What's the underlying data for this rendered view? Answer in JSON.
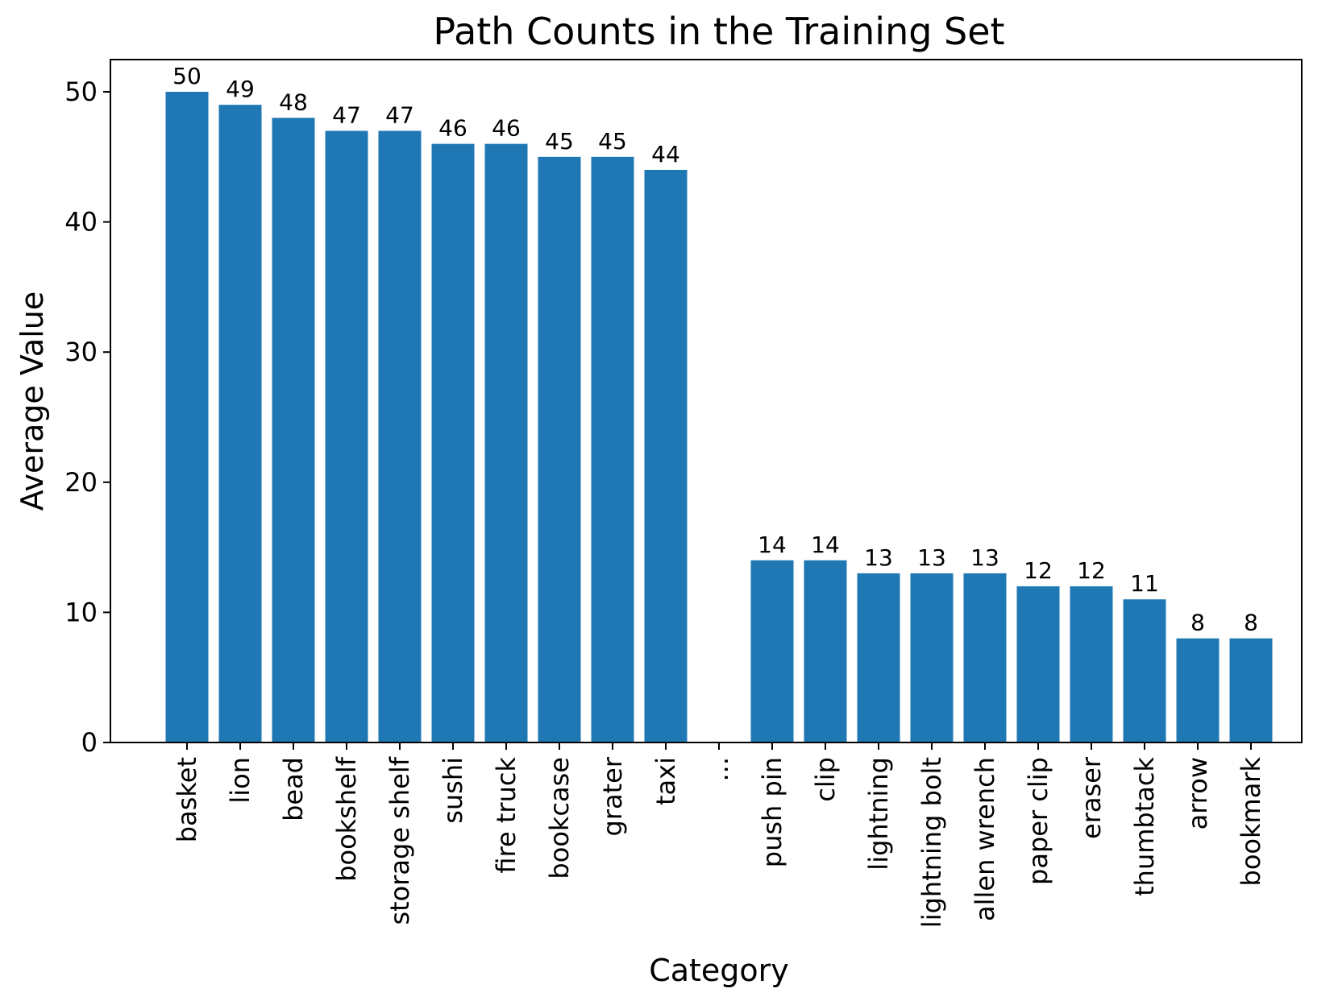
{
  "chart_data": {
    "type": "bar",
    "title": "Path Counts in the Training Set",
    "xlabel": "Category",
    "ylabel": "Average Value",
    "ylim": [
      0,
      52.5
    ],
    "yticks": [
      0,
      10,
      20,
      30,
      40,
      50
    ],
    "grid": false,
    "bar_color": "#1f77b4",
    "categories": [
      "basket",
      "lion",
      "bead",
      "bookshelf",
      "storage shelf",
      "sushi",
      "fire truck",
      "bookcase",
      "grater",
      "taxi",
      "...",
      "push pin",
      "clip",
      "lightning",
      "lightning bolt",
      "allen wrench",
      "paper clip",
      "eraser",
      "thumbtack",
      "arrow",
      "bookmark"
    ],
    "values": [
      50,
      49,
      48,
      47,
      47,
      46,
      46,
      45,
      45,
      44,
      null,
      14,
      14,
      13,
      13,
      13,
      12,
      12,
      11,
      8,
      8
    ],
    "value_labels": [
      "50",
      "49",
      "48",
      "47",
      "47",
      "46",
      "46",
      "45",
      "45",
      "44",
      "",
      "14",
      "14",
      "13",
      "13",
      "13",
      "12",
      "12",
      "11",
      "8",
      "8"
    ]
  }
}
